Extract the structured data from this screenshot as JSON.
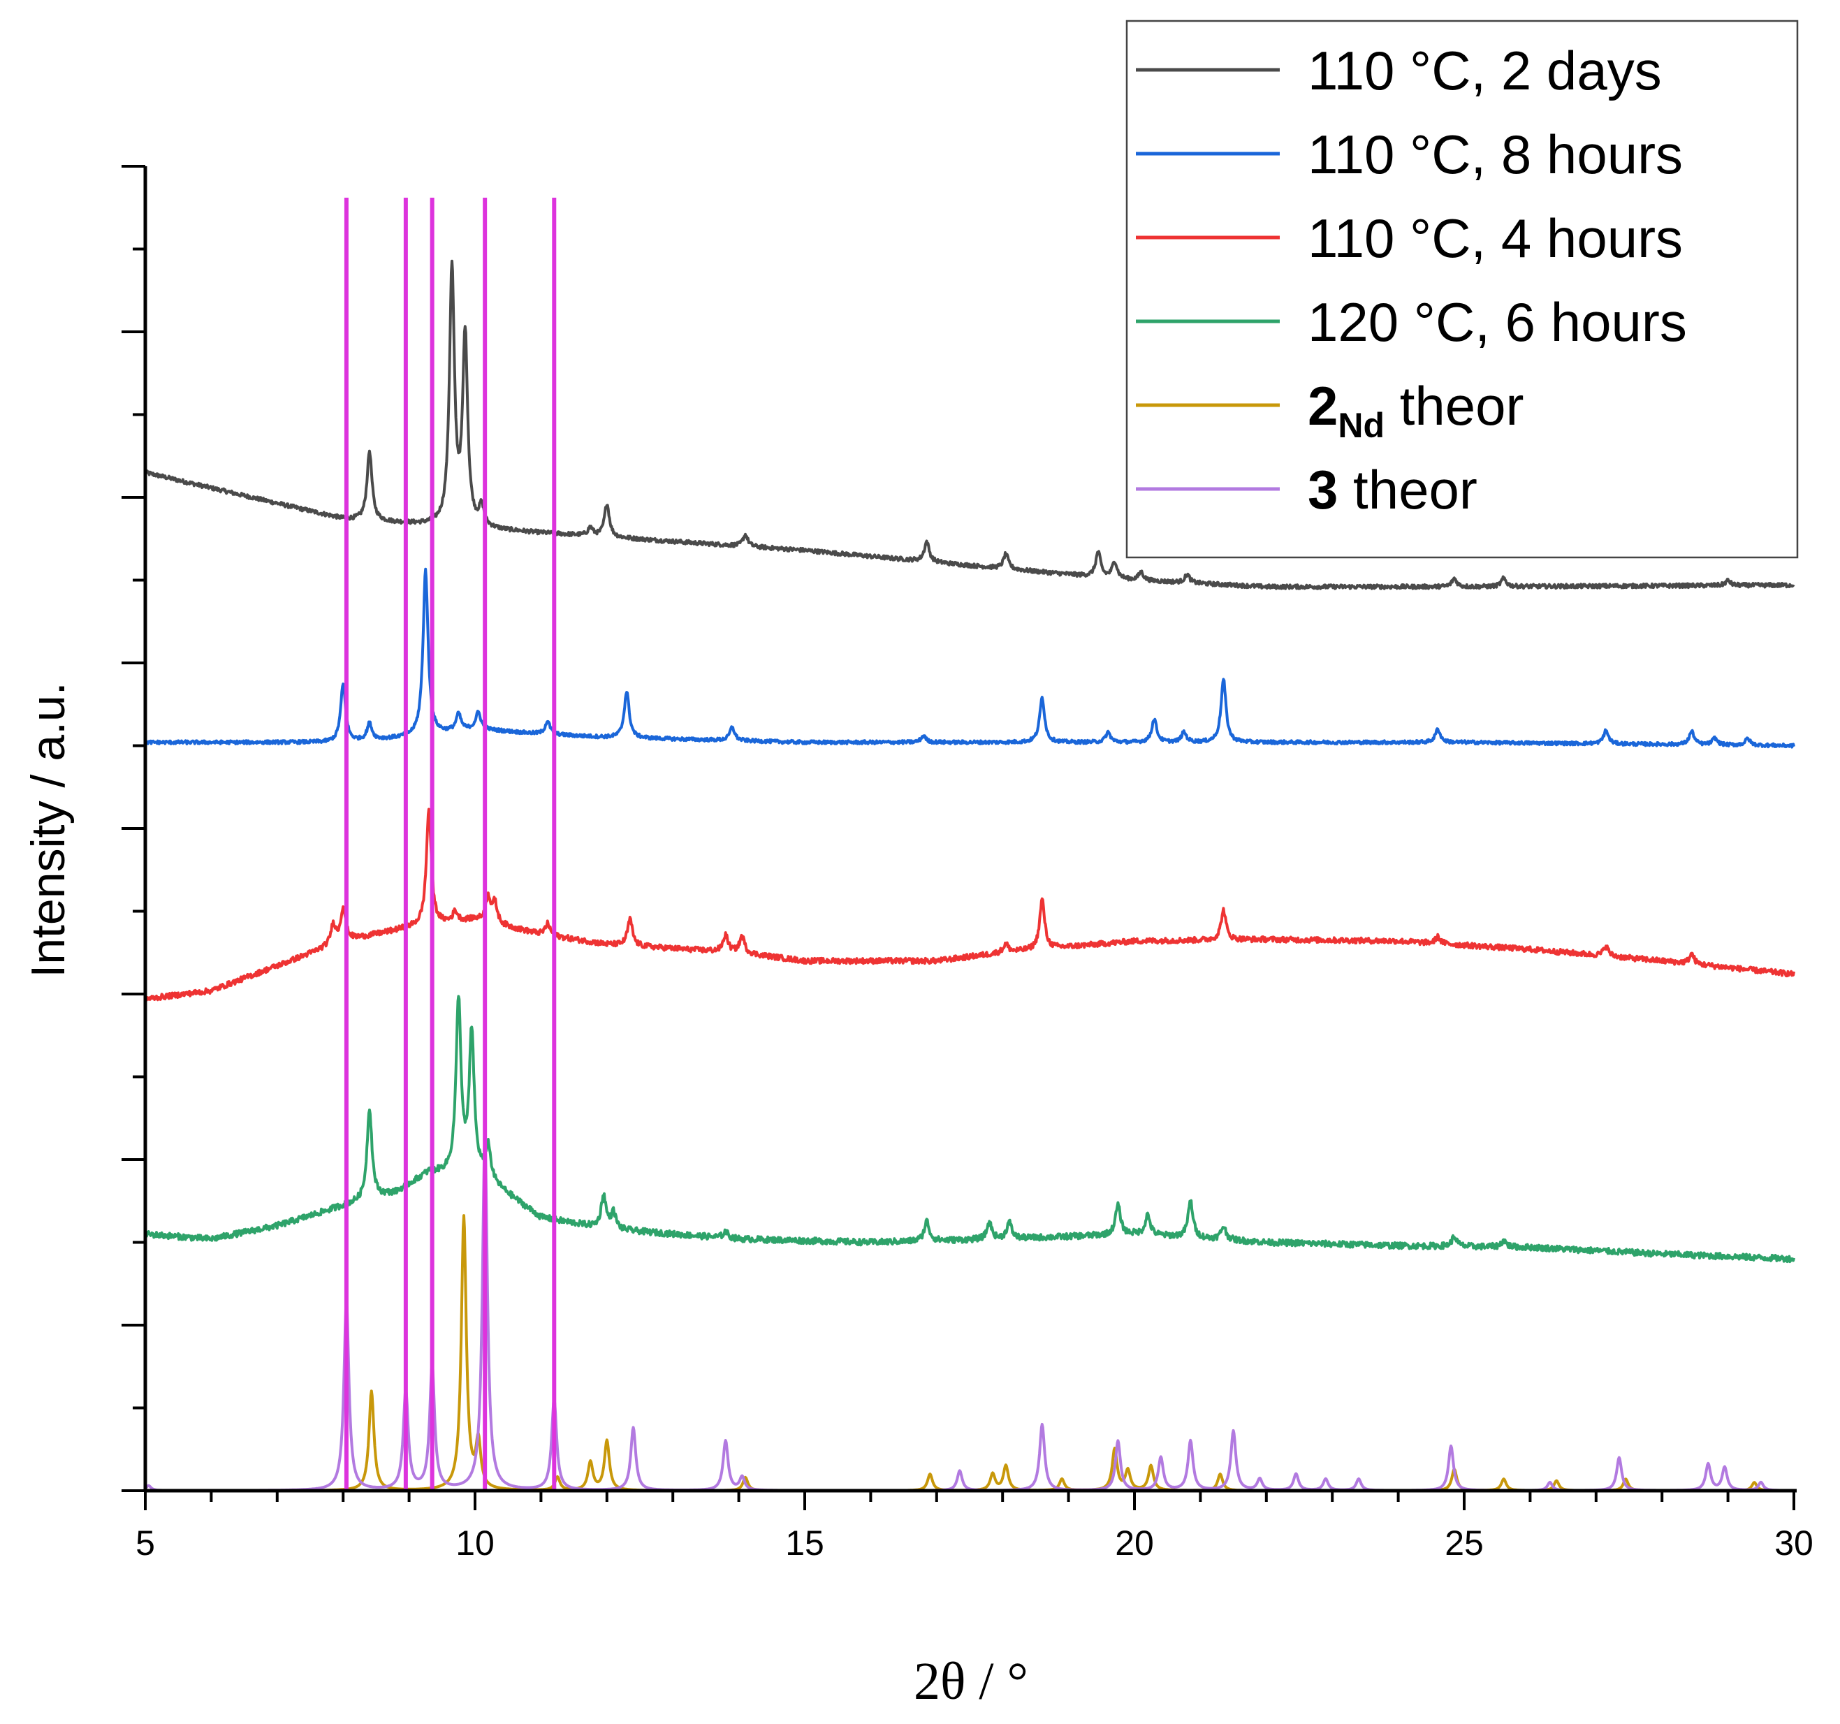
{
  "chart_data": {
    "type": "line",
    "title": "",
    "xlabel": "2θ / °",
    "ylabel": "Intensity / a.u.",
    "xlim": [
      5,
      30
    ],
    "ylim": [
      0,
      8
    ],
    "x_ticks": [
      "5",
      "10",
      "15",
      "20",
      "25",
      "30"
    ],
    "y_tick_labels": "none",
    "grid": false,
    "legend_position": "top-right",
    "reference_lines": {
      "color": "#dd33dd",
      "x": [
        8.05,
        8.95,
        9.35,
        10.15,
        11.2
      ]
    },
    "series": [
      {
        "name": "110 °C, 2 days",
        "legend": {
          "main": "110 °C, 2 days",
          "sub": "",
          "rest": ""
        },
        "color": "#4a4a4a",
        "baseline": [
          [
            5,
            6.15
          ],
          [
            8,
            5.87
          ],
          [
            9,
            5.84
          ],
          [
            10,
            5.81
          ],
          [
            12,
            5.76
          ],
          [
            15,
            5.68
          ],
          [
            18,
            5.57
          ],
          [
            20,
            5.5
          ],
          [
            22,
            5.46
          ],
          [
            25,
            5.46
          ],
          [
            30,
            5.47
          ]
        ],
        "peaks": [
          [
            8.4,
            0.42
          ],
          [
            9.65,
            1.55
          ],
          [
            9.85,
            1.15
          ],
          [
            10.1,
            0.12
          ],
          [
            11.75,
            0.05
          ],
          [
            12.0,
            0.2
          ],
          [
            14.1,
            0.07
          ],
          [
            16.85,
            0.12
          ],
          [
            18.05,
            0.09
          ],
          [
            19.45,
            0.15
          ],
          [
            19.7,
            0.1
          ],
          [
            20.1,
            0.05
          ],
          [
            20.8,
            0.05
          ],
          [
            24.85,
            0.05
          ],
          [
            25.6,
            0.05
          ],
          [
            29.0,
            0.03
          ]
        ],
        "noise": 0.012
      },
      {
        "name": "110 °C, 8 hours",
        "legend": {
          "main": "110 °C, 8 hours",
          "sub": "",
          "rest": ""
        },
        "color": "#1a66d9",
        "baseline": [
          [
            5,
            4.52
          ],
          [
            8,
            4.52
          ],
          [
            9,
            4.55
          ],
          [
            10,
            4.6
          ],
          [
            11,
            4.57
          ],
          [
            12,
            4.55
          ],
          [
            15,
            4.52
          ],
          [
            20,
            4.52
          ],
          [
            25,
            4.52
          ],
          [
            30,
            4.5
          ]
        ],
        "peaks": [
          [
            8.0,
            0.35
          ],
          [
            8.4,
            0.1
          ],
          [
            9.25,
            1.0
          ],
          [
            9.75,
            0.1
          ],
          [
            10.05,
            0.1
          ],
          [
            11.1,
            0.08
          ],
          [
            12.3,
            0.28
          ],
          [
            13.9,
            0.08
          ],
          [
            16.8,
            0.04
          ],
          [
            18.6,
            0.27
          ],
          [
            19.6,
            0.06
          ],
          [
            20.3,
            0.14
          ],
          [
            20.75,
            0.06
          ],
          [
            21.35,
            0.38
          ],
          [
            24.6,
            0.08
          ],
          [
            27.15,
            0.08
          ],
          [
            28.45,
            0.08
          ],
          [
            28.8,
            0.04
          ],
          [
            29.3,
            0.04
          ]
        ],
        "noise": 0.01
      },
      {
        "name": "110 °C, 4 hours",
        "legend": {
          "main": "110 °C, 4 hours",
          "sub": "",
          "rest": ""
        },
        "color": "#ee3333",
        "baseline": [
          [
            5,
            2.97
          ],
          [
            6,
            3.02
          ],
          [
            7,
            3.17
          ],
          [
            8,
            3.32
          ],
          [
            9,
            3.4
          ],
          [
            10,
            3.45
          ],
          [
            11,
            3.36
          ],
          [
            12,
            3.3
          ],
          [
            14,
            3.25
          ],
          [
            15,
            3.2
          ],
          [
            17,
            3.2
          ],
          [
            18,
            3.25
          ],
          [
            20,
            3.32
          ],
          [
            22,
            3.33
          ],
          [
            24,
            3.32
          ],
          [
            26,
            3.27
          ],
          [
            28,
            3.2
          ],
          [
            30,
            3.12
          ]
        ],
        "peaks": [
          [
            7.85,
            0.12
          ],
          [
            8.0,
            0.2
          ],
          [
            9.3,
            0.7
          ],
          [
            9.7,
            0.06
          ],
          [
            10.2,
            0.15
          ],
          [
            10.3,
            0.12
          ],
          [
            11.1,
            0.07
          ],
          [
            12.35,
            0.16
          ],
          [
            13.8,
            0.1
          ],
          [
            14.05,
            0.1
          ],
          [
            18.05,
            0.05
          ],
          [
            18.6,
            0.3
          ],
          [
            21.35,
            0.18
          ],
          [
            24.6,
            0.04
          ],
          [
            27.15,
            0.06
          ],
          [
            28.45,
            0.06
          ]
        ],
        "noise": 0.016
      },
      {
        "name": "120 °C, 6 hours",
        "legend": {
          "main": "120 °C, 6 hours",
          "sub": "",
          "rest": ""
        },
        "color": "#2ea36a",
        "baseline": [
          [
            5,
            1.55
          ],
          [
            6,
            1.52
          ],
          [
            7,
            1.6
          ],
          [
            8,
            1.72
          ],
          [
            8.8,
            1.8
          ],
          [
            9.3,
            1.92
          ],
          [
            10.1,
            1.9
          ],
          [
            11,
            1.65
          ],
          [
            12,
            1.58
          ],
          [
            14,
            1.52
          ],
          [
            16,
            1.5
          ],
          [
            18,
            1.52
          ],
          [
            20,
            1.55
          ],
          [
            22,
            1.5
          ],
          [
            24,
            1.48
          ],
          [
            26,
            1.47
          ],
          [
            28,
            1.43
          ],
          [
            30,
            1.4
          ]
        ],
        "peaks": [
          [
            8.4,
            0.55
          ],
          [
            9.75,
            1.05
          ],
          [
            9.95,
            0.85
          ],
          [
            10.2,
            0.2
          ],
          [
            11.95,
            0.2
          ],
          [
            12.1,
            0.1
          ],
          [
            13.8,
            0.04
          ],
          [
            16.85,
            0.12
          ],
          [
            17.8,
            0.1
          ],
          [
            18.1,
            0.1
          ],
          [
            19.75,
            0.18
          ],
          [
            20.2,
            0.12
          ],
          [
            20.85,
            0.22
          ],
          [
            21.35,
            0.08
          ],
          [
            24.85,
            0.06
          ],
          [
            25.6,
            0.04
          ]
        ],
        "noise": 0.018
      },
      {
        "name": "2Nd theor",
        "legend": {
          "main": "2",
          "sub": "Nd",
          "rest": " theor"
        },
        "color": "#c8980a",
        "baseline": [
          [
            5,
            0.0
          ],
          [
            30,
            0.0
          ]
        ],
        "peaks": [
          [
            8.43,
            0.6
          ],
          [
            9.83,
            1.65
          ],
          [
            10.05,
            0.28
          ],
          [
            11.25,
            0.08
          ],
          [
            11.75,
            0.17
          ],
          [
            12.0,
            0.3
          ],
          [
            14.1,
            0.08
          ],
          [
            16.9,
            0.1
          ],
          [
            17.85,
            0.1
          ],
          [
            18.05,
            0.15
          ],
          [
            18.9,
            0.07
          ],
          [
            19.7,
            0.25
          ],
          [
            19.9,
            0.12
          ],
          [
            20.25,
            0.15
          ],
          [
            21.3,
            0.1
          ],
          [
            24.85,
            0.13
          ],
          [
            25.6,
            0.07
          ],
          [
            26.4,
            0.06
          ],
          [
            27.45,
            0.07
          ],
          [
            29.4,
            0.05
          ]
        ],
        "noise": 0.0
      },
      {
        "name": "3 theor",
        "legend": {
          "main": "3",
          "sub": "",
          "rest": " theor"
        },
        "color": "#b27ae0",
        "baseline": [
          [
            5,
            0.0
          ],
          [
            30,
            0.0
          ]
        ],
        "peaks": [
          [
            5.05,
            0.03
          ],
          [
            8.05,
            1.15
          ],
          [
            8.95,
            0.6
          ],
          [
            9.35,
            0.75
          ],
          [
            10.15,
            2.15
          ],
          [
            11.2,
            0.55
          ],
          [
            12.4,
            0.38
          ],
          [
            13.8,
            0.3
          ],
          [
            14.05,
            0.08
          ],
          [
            17.35,
            0.12
          ],
          [
            18.6,
            0.4
          ],
          [
            19.75,
            0.3
          ],
          [
            20.4,
            0.2
          ],
          [
            20.85,
            0.3
          ],
          [
            21.5,
            0.36
          ],
          [
            21.9,
            0.07
          ],
          [
            22.45,
            0.1
          ],
          [
            22.9,
            0.07
          ],
          [
            23.4,
            0.07
          ],
          [
            24.8,
            0.27
          ],
          [
            26.3,
            0.05
          ],
          [
            27.35,
            0.2
          ],
          [
            28.7,
            0.16
          ],
          [
            28.95,
            0.14
          ],
          [
            29.5,
            0.05
          ]
        ],
        "noise": 0.0
      }
    ]
  }
}
